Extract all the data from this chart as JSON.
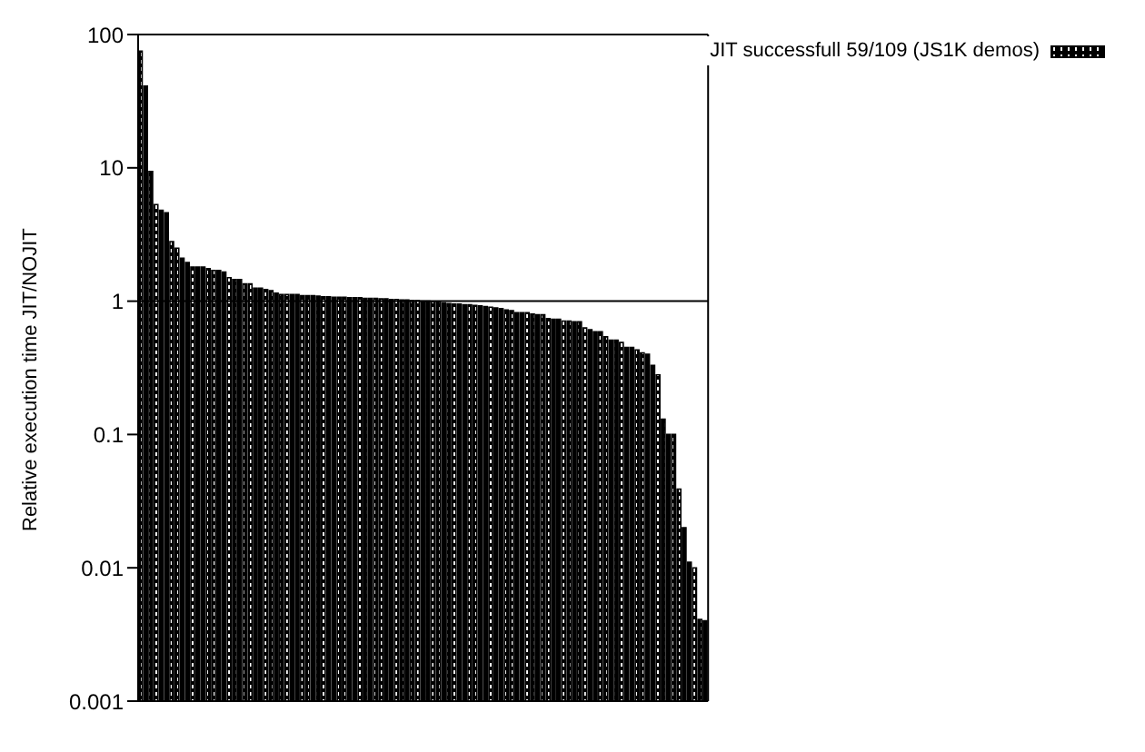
{
  "chart_data": {
    "type": "bar",
    "ylabel": "Relative execution time JIT/NOJIT",
    "categories": [
      null,
      null,
      null,
      null,
      null,
      null,
      null,
      null,
      null,
      null,
      null,
      null,
      null,
      null,
      null,
      null,
      null,
      null,
      null,
      null,
      null,
      null,
      null,
      null,
      null,
      null,
      null,
      null,
      null,
      null,
      null,
      null,
      null,
      null,
      null,
      null,
      null,
      null,
      null,
      null,
      null,
      null,
      null,
      null,
      null,
      null,
      null,
      null,
      null,
      null,
      null,
      null,
      null,
      null,
      null,
      null,
      null,
      null,
      null,
      null,
      null,
      null,
      null,
      null,
      null,
      null,
      null,
      null,
      null,
      null,
      null,
      null,
      null,
      null,
      null,
      null,
      null,
      null,
      null,
      null,
      null,
      null,
      null,
      null,
      null,
      null,
      null,
      null,
      null,
      null,
      null,
      null,
      null,
      null,
      null,
      null,
      null,
      null,
      null,
      null,
      null,
      null,
      null,
      null,
      null,
      null,
      null,
      null,
      null
    ],
    "series": [
      {
        "name": "JIT successfull 59/109 (JS1K demos)",
        "color": "#000000",
        "values": [
          75,
          41,
          9.4,
          5.3,
          4.8,
          4.6,
          2.8,
          2.5,
          2.1,
          1.95,
          1.8,
          1.8,
          1.8,
          1.75,
          1.7,
          1.7,
          1.65,
          1.5,
          1.45,
          1.45,
          1.35,
          1.35,
          1.25,
          1.25,
          1.22,
          1.2,
          1.15,
          1.12,
          1.12,
          1.12,
          1.12,
          1.1,
          1.1,
          1.1,
          1.09,
          1.08,
          1.08,
          1.07,
          1.07,
          1.07,
          1.06,
          1.06,
          1.06,
          1.05,
          1.05,
          1.05,
          1.04,
          1.04,
          1.03,
          1.03,
          1.02,
          1.02,
          1.01,
          1.01,
          1.0,
          1.0,
          0.99,
          0.98,
          0.97,
          0.96,
          0.95,
          0.95,
          0.94,
          0.94,
          0.93,
          0.92,
          0.91,
          0.9,
          0.89,
          0.88,
          0.86,
          0.85,
          0.82,
          0.82,
          0.82,
          0.8,
          0.79,
          0.79,
          0.74,
          0.73,
          0.73,
          0.71,
          0.71,
          0.7,
          0.7,
          0.63,
          0.61,
          0.59,
          0.59,
          0.54,
          0.51,
          0.51,
          0.49,
          0.45,
          0.45,
          0.43,
          0.41,
          0.4,
          0.33,
          0.28,
          0.13,
          0.1,
          0.1,
          0.039,
          0.02,
          0.011,
          0.01,
          0.0041,
          0.004
        ]
      }
    ],
    "log": "y",
    "ylim": [
      0.001,
      100
    ],
    "yticks": [
      0.001,
      0.01,
      0.1,
      1,
      10,
      100
    ],
    "ref_lines": [
      {
        "axis": "y",
        "value": 1,
        "color": "#000000"
      }
    ],
    "legend": "top right",
    "grid": false
  }
}
